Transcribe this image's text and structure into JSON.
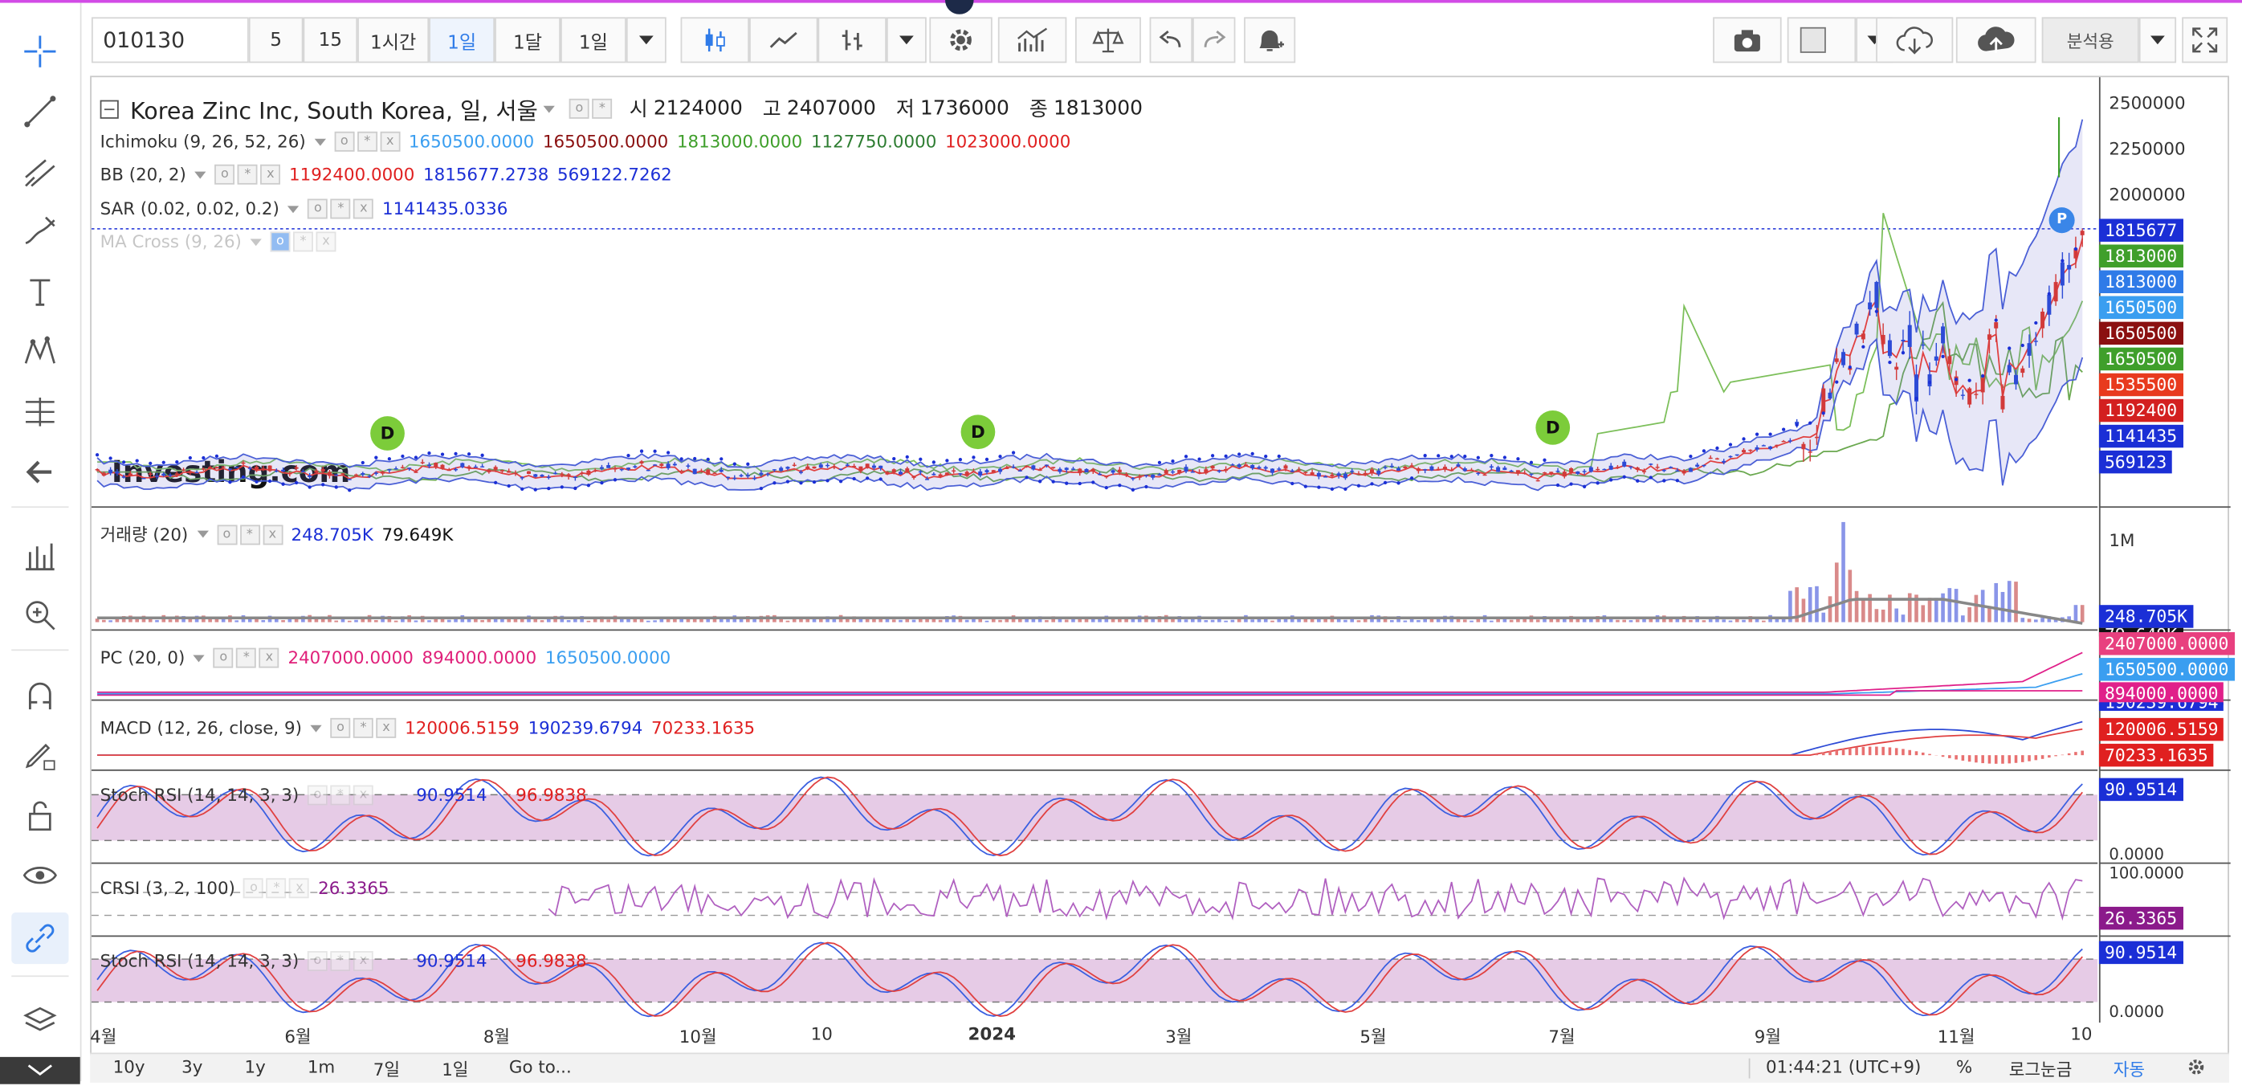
{
  "toolbar": {
    "symbol": "010130",
    "intervals": [
      "5",
      "15",
      "1시간",
      "1일",
      "1달",
      "1일"
    ],
    "selected_interval": "1일",
    "layout_mode": "분석용"
  },
  "header": {
    "title": "Korea Zinc Inc, South Korea, 일, 서울",
    "open_label": "시",
    "open": "2124000",
    "high_label": "고",
    "high": "2407000",
    "low_label": "저",
    "low": "1736000",
    "close_label": "종",
    "close": "1813000"
  },
  "legends": {
    "ichimoku": {
      "name": "Ichimoku (9, 26, 52, 26)",
      "v1": "1650500.0000",
      "v2": "1650500.0000",
      "v3": "1813000.0000",
      "v4": "1127750.0000",
      "v5": "1023000.0000"
    },
    "bb": {
      "name": "BB (20, 2)",
      "v1": "1192400.0000",
      "v2": "1815677.2738",
      "v3": "569122.7262"
    },
    "sar": {
      "name": "SAR (0.02, 0.02, 0.2)",
      "v1": "1141435.0336"
    },
    "macross": {
      "name": "MA Cross (9, 26)"
    },
    "volume": {
      "name": "거래량 (20)",
      "v1": "248.705K",
      "v2": "79.649K"
    },
    "pc": {
      "name": "PC (20, 0)",
      "v1": "2407000.0000",
      "v2": "894000.0000",
      "v3": "1650500.0000"
    },
    "macd": {
      "name": "MACD (12, 26, close, 9)",
      "v1": "120006.5159",
      "v2": "190239.6794",
      "v3": "70233.1635"
    },
    "stochrsi": {
      "name": "Stoch RSI (14, 14, 3, 3)",
      "v1": "90.9514",
      "v2": "96.9838"
    },
    "crsi": {
      "name": "CRSI (3, 2, 100)",
      "v1": "26.3365"
    },
    "stochrsi2": {
      "name": "Stoch RSI (14, 14, 3, 3)",
      "v1": "90.9514",
      "v2": "96.9838"
    }
  },
  "price_axis": {
    "ticks": [
      "2500000",
      "2250000",
      "2000000"
    ],
    "tags": [
      "1815677",
      "1813000",
      "1813000",
      "1650500",
      "1650500",
      "1650500",
      "1535500",
      "1192400",
      "1141435",
      "569123"
    ],
    "tag_colors": [
      "#1b2fd6",
      "#3f9f2b",
      "#2f7be8",
      "#3a9ef0",
      "#8b1010",
      "#3f9f2b",
      "#e83a1e",
      "#d32020",
      "#1b2fd6",
      "#1b2fd6"
    ]
  },
  "volume_axis": {
    "tick": "1M",
    "tags": [
      "248.705K",
      "79.649K"
    ]
  },
  "pc_axis": {
    "tags": [
      "2407000.0000",
      "1650500.0000",
      "894000.0000"
    ]
  },
  "macd_axis": {
    "tags": [
      "190239.6794",
      "120006.5159",
      "70233.1635"
    ]
  },
  "stoch_axis": {
    "tag": "90.9514",
    "tick": "0.0000"
  },
  "crsi_axis": {
    "tick": "100.0000",
    "tag": "26.3365"
  },
  "stoch2_axis": {
    "tag": "90.9514",
    "tick": "0.0000"
  },
  "dividend_marker": "D",
  "watermark": "Investing.com",
  "p_marker": "P",
  "time_axis": [
    "4월",
    "6월",
    "8월",
    "10월",
    "10",
    "2024",
    "3월",
    "5월",
    "7월",
    "9월",
    "11월",
    "10"
  ],
  "bottom_bar": {
    "ranges": [
      "10y",
      "3y",
      "1y",
      "1m",
      "7일",
      "1일"
    ],
    "goto": "Go to...",
    "clock": "01:44:21 (UTC+9)",
    "percent": "%",
    "log": "로그눈금",
    "auto": "자동"
  }
}
